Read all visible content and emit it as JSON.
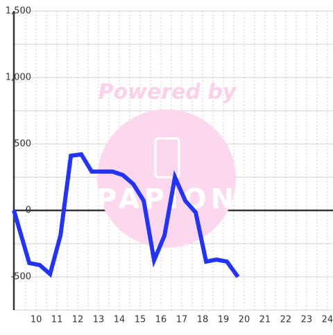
{
  "chart_data": {
    "type": "line",
    "watermark": "Powered by",
    "x": [
      8.93,
      9.67,
      10.17,
      10.67,
      11.17,
      11.67,
      12.17,
      12.67,
      13.17,
      13.67,
      14.17,
      14.67,
      15.17,
      15.67,
      16.17,
      16.67,
      17.17,
      17.67,
      18.17,
      18.67,
      19.17,
      19.7
    ],
    "values": [
      0,
      -396,
      -411,
      -479,
      -188,
      411,
      422,
      292,
      292,
      292,
      266,
      198,
      73,
      -375,
      -188,
      250,
      73,
      -16,
      -385,
      -370,
      -385,
      -500
    ],
    "color": "#2233ff",
    "xlim": [
      8.93,
      24.27
    ],
    "xticks": [
      10,
      11,
      12,
      13,
      14,
      15,
      16,
      17,
      18,
      19,
      20,
      21,
      22,
      23,
      24
    ],
    "x_minor_ticks": [
      9.5,
      10.5,
      11.5,
      12.5,
      13.5,
      14.5,
      15.5,
      16.5,
      17.5,
      18.5,
      19.5,
      20.5,
      21.5,
      22.5,
      23.5
    ],
    "ylim": [
      -750,
      1500
    ],
    "yticks": [
      -500,
      0,
      500,
      {
        "value": 1000,
        "label": "1,000"
      },
      {
        "value": 1500,
        "label": "1,500"
      }
    ],
    "y_minor_ticks": [
      -750,
      -250,
      250,
      750,
      1250
    ],
    "grid": true
  }
}
